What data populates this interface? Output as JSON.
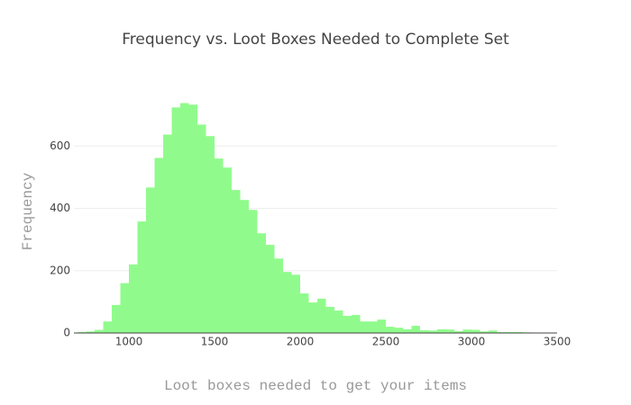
{
  "chart_data": {
    "type": "histogram",
    "title": "Frequency vs. Loot Boxes Needed to Complete Set",
    "x_label": "Loot boxes needed to get your items",
    "y_label": "Frequency",
    "color": "#90fb8c",
    "bins": [
      700,
      750,
      800,
      850,
      900,
      950,
      1000,
      1050,
      1100,
      1150,
      1200,
      1250,
      1300,
      1350,
      1400,
      1450,
      1500,
      1550,
      1600,
      1650,
      1700,
      1750,
      1800,
      1850,
      1900,
      1950,
      2000,
      2050,
      2100,
      2150,
      2200,
      2250,
      2300,
      2350,
      2400,
      2450,
      2500,
      2550,
      2600,
      2650,
      2700,
      2750,
      2800,
      2850,
      2900,
      2950,
      3000,
      3050,
      3100,
      3150,
      3200,
      3250,
      3300,
      3350,
      3400,
      3450,
      3500
    ],
    "values": [
      3,
      5,
      10,
      37,
      90,
      160,
      220,
      358,
      467,
      562,
      637,
      724,
      738,
      733,
      669,
      632,
      560,
      531,
      459,
      427,
      395,
      320,
      283,
      239,
      196,
      187,
      127,
      98,
      110,
      84,
      72,
      55,
      58,
      37,
      37,
      43,
      20,
      17,
      12,
      23,
      9,
      8,
      12,
      11,
      6,
      11,
      10,
      5,
      8,
      3,
      3,
      3,
      2,
      1,
      1,
      1
    ],
    "xlim": [
      700,
      3500
    ],
    "ylim": [
      0,
      780
    ],
    "xticks": [
      1000,
      1500,
      2000,
      2500,
      3000,
      3500
    ],
    "yticks": [
      0,
      200,
      400,
      600
    ],
    "grid": true
  }
}
